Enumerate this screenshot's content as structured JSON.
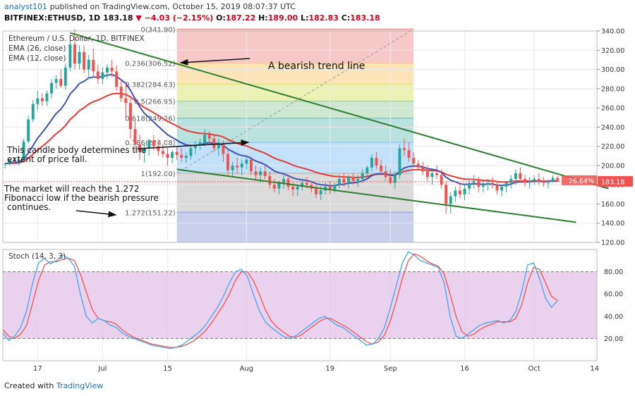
{
  "header": {
    "user": "analyst101",
    "published": "published on TradingView.com, October 15, 2019 08:07:37 UTC",
    "symbol": "BITFINEX:ETHUSD, 1D",
    "close_label": "183.18",
    "change": "▼ −4.03 (−2.15%)",
    "o_label": "O:",
    "o_val": "187.22",
    "h_label": "H:",
    "h_val": "189.00",
    "l_label": "L:",
    "l_val": "182.83",
    "c_label": "C:",
    "c_val": "183.18"
  },
  "legend": {
    "title": "Ethereum / U.S. Dollar, 1D, BITFINEX",
    "ema26": "EMA (26, close)",
    "ema12": "EMA (12, close)",
    "stoch": "Stoch (14, 3, 3)"
  },
  "annotations": {
    "bearish_trend": "A bearish trend line",
    "candle_note_1": "This candle body determines the",
    "candle_note_2": "extent of price fall.",
    "market_note_1": "The market will reach the 1.272",
    "market_note_2": "Fibonacci low if the bearish pressure",
    "market_note_3": "continues."
  },
  "footer": {
    "created_with": "Created with",
    "brand": "TradingView"
  },
  "colors": {
    "up": "#26a69a",
    "down": "#ef5350",
    "ema26": "#e53935",
    "ema12": "#3f51b5",
    "trend": "#2e7d32",
    "stoch_k": "#42a5f5",
    "stoch_d": "#ef5350",
    "stoch_bg": "#e1bee7"
  },
  "chart_data": {
    "type": "candlestick",
    "x_ticks": [
      {
        "label": "17",
        "t": 7
      },
      {
        "label": "Jul",
        "t": 21
      },
      {
        "label": "15",
        "t": 35
      },
      {
        "label": "Aug",
        "t": 52
      },
      {
        "label": "19",
        "t": 70
      },
      {
        "label": "Sep",
        "t": 83
      },
      {
        "label": "16",
        "t": 99
      },
      {
        "label": "Oct",
        "t": 114
      },
      {
        "label": "14",
        "t": 127
      }
    ],
    "price_axis": {
      "ylim": [
        120,
        340
      ],
      "ticks": [
        120,
        140,
        160,
        180,
        200,
        220,
        240,
        260,
        280,
        300,
        320,
        340
      ]
    },
    "price_labels": [
      {
        "label": "340.00",
        "v": 340
      },
      {
        "label": "320.00",
        "v": 320
      },
      {
        "label": "300.00",
        "v": 300
      },
      {
        "label": "280.00",
        "v": 280
      },
      {
        "label": "260.00",
        "v": 260
      },
      {
        "label": "240.00",
        "v": 240
      },
      {
        "label": "220.00",
        "v": 220
      },
      {
        "label": "200.00",
        "v": 200
      },
      {
        "label": "180.00",
        "v": 180
      },
      {
        "label": "160.00",
        "v": 160
      },
      {
        "label": "140.00",
        "v": 140
      },
      {
        "label": "120.00",
        "v": 120
      }
    ],
    "last_price": {
      "label": "183.18",
      "v": 183.18
    },
    "pct_label": "26.64%",
    "fibonacci": {
      "t_start": 37,
      "t_end": 88,
      "levels": [
        {
          "label": "0(341.90)",
          "v": 341.9,
          "color": "#ef9a9a"
        },
        {
          "label": "0.236(306.52)",
          "v": 306.52,
          "color": "#ffcc80"
        },
        {
          "label": "0.382(284.63)",
          "v": 284.63,
          "color": "#dce775"
        },
        {
          "label": "0.5(266.95)",
          "v": 266.95,
          "color": "#a5d6a7"
        },
        {
          "label": "0.618(249.26)",
          "v": 249.26,
          "color": "#80cbc4"
        },
        {
          "label": "0.786(224.08)",
          "v": 224.08,
          "color": "#90caf9"
        },
        {
          "label": "1(192.00)",
          "v": 192.0,
          "color": "#bdbdbd"
        },
        {
          "label": "1.272(151.22)",
          "v": 151.22,
          "color": "#9fa8da"
        }
      ],
      "extension_bottom": 120
    },
    "trend_lines": [
      {
        "t1": 14,
        "v1": 338,
        "t2": 130,
        "v2": 176
      },
      {
        "t1": 37,
        "v1": 196,
        "t2": 123,
        "v2": 141
      }
    ],
    "candles": [
      [
        202,
        203,
        197,
        202
      ],
      [
        203,
        207,
        200,
        206
      ],
      [
        206,
        209,
        203,
        204
      ],
      [
        204,
        209,
        200,
        206
      ],
      [
        206,
        228,
        205,
        225
      ],
      [
        225,
        252,
        223,
        248
      ],
      [
        248,
        268,
        245,
        264
      ],
      [
        264,
        278,
        258,
        270
      ],
      [
        270,
        275,
        262,
        267
      ],
      [
        267,
        278,
        262,
        275
      ],
      [
        275,
        290,
        270,
        286
      ],
      [
        286,
        294,
        280,
        290
      ],
      [
        290,
        300,
        281,
        283
      ],
      [
        283,
        306,
        279,
        302
      ],
      [
        302,
        330,
        298,
        326
      ],
      [
        326,
        342,
        300,
        306
      ],
      [
        306,
        325,
        300,
        318
      ],
      [
        318,
        325,
        296,
        300
      ],
      [
        300,
        315,
        290,
        310
      ],
      [
        310,
        322,
        292,
        298
      ],
      [
        298,
        305,
        285,
        290
      ],
      [
        290,
        302,
        285,
        297
      ],
      [
        297,
        305,
        290,
        302
      ],
      [
        302,
        310,
        292,
        298
      ],
      [
        298,
        304,
        278,
        282
      ],
      [
        282,
        290,
        266,
        270
      ],
      [
        270,
        285,
        250,
        265
      ],
      [
        265,
        270,
        228,
        238
      ],
      [
        238,
        248,
        214,
        222
      ],
      [
        222,
        232,
        206,
        214
      ],
      [
        214,
        224,
        203,
        218
      ],
      [
        218,
        228,
        210,
        226
      ],
      [
        226,
        232,
        216,
        220
      ],
      [
        220,
        227,
        210,
        215
      ],
      [
        215,
        222,
        208,
        212
      ],
      [
        212,
        218,
        200,
        208
      ],
      [
        208,
        216,
        202,
        214
      ],
      [
        214,
        220,
        206,
        211
      ],
      [
        211,
        218,
        204,
        208
      ],
      [
        208,
        214,
        203,
        210
      ],
      [
        210,
        222,
        206,
        218
      ],
      [
        218,
        225,
        212,
        221
      ],
      [
        221,
        228,
        216,
        224
      ],
      [
        224,
        238,
        220,
        232
      ],
      [
        232,
        236,
        222,
        228
      ],
      [
        228,
        232,
        214,
        218
      ],
      [
        218,
        228,
        210,
        222
      ],
      [
        222,
        226,
        204,
        212
      ],
      [
        212,
        216,
        190,
        195
      ],
      [
        195,
        204,
        188,
        200
      ],
      [
        200,
        208,
        192,
        198
      ],
      [
        198,
        206,
        190,
        202
      ],
      [
        202,
        210,
        196,
        206
      ],
      [
        206,
        210,
        190,
        194
      ],
      [
        194,
        200,
        185,
        190
      ],
      [
        190,
        198,
        182,
        194
      ],
      [
        194,
        200,
        186,
        189
      ],
      [
        189,
        194,
        176,
        180
      ],
      [
        180,
        186,
        172,
        176
      ],
      [
        176,
        184,
        170,
        182
      ],
      [
        182,
        190,
        176,
        186
      ],
      [
        186,
        188,
        174,
        178
      ],
      [
        178,
        182,
        168,
        175
      ],
      [
        175,
        180,
        168,
        178
      ],
      [
        178,
        186,
        174,
        182
      ],
      [
        182,
        188,
        176,
        180
      ],
      [
        180,
        184,
        172,
        176
      ],
      [
        176,
        180,
        166,
        170
      ],
      [
        170,
        178,
        164,
        174
      ],
      [
        174,
        182,
        170,
        178
      ],
      [
        178,
        184,
        170,
        175
      ],
      [
        175,
        182,
        172,
        180
      ],
      [
        180,
        190,
        176,
        186
      ],
      [
        186,
        192,
        178,
        182
      ],
      [
        182,
        190,
        176,
        188
      ],
      [
        188,
        192,
        180,
        184
      ],
      [
        184,
        190,
        178,
        186
      ],
      [
        186,
        196,
        182,
        192
      ],
      [
        192,
        200,
        186,
        198
      ],
      [
        198,
        212,
        194,
        208
      ],
      [
        208,
        214,
        196,
        200
      ],
      [
        200,
        206,
        190,
        194
      ],
      [
        194,
        200,
        184,
        188
      ],
      [
        188,
        196,
        180,
        182
      ],
      [
        182,
        194,
        176,
        190
      ],
      [
        190,
        222,
        186,
        218
      ],
      [
        218,
        228,
        210,
        216
      ],
      [
        216,
        224,
        204,
        208
      ],
      [
        208,
        214,
        198,
        202
      ],
      [
        202,
        206,
        196,
        198
      ],
      [
        198,
        204,
        190,
        194
      ],
      [
        194,
        200,
        184,
        188
      ],
      [
        188,
        196,
        180,
        192
      ],
      [
        192,
        200,
        186,
        190
      ],
      [
        190,
        196,
        176,
        180
      ],
      [
        180,
        184,
        150,
        160
      ],
      [
        160,
        172,
        150,
        168
      ],
      [
        168,
        178,
        162,
        174
      ],
      [
        174,
        182,
        166,
        170
      ],
      [
        170,
        180,
        164,
        176
      ],
      [
        176,
        186,
        170,
        182
      ],
      [
        182,
        190,
        176,
        184
      ],
      [
        184,
        188,
        172,
        178
      ],
      [
        178,
        184,
        172,
        180
      ],
      [
        180,
        186,
        174,
        182
      ],
      [
        182,
        188,
        176,
        180
      ],
      [
        180,
        184,
        170,
        174
      ],
      [
        174,
        180,
        168,
        178
      ],
      [
        178,
        184,
        172,
        182
      ],
      [
        182,
        190,
        176,
        186
      ],
      [
        186,
        196,
        180,
        192
      ],
      [
        192,
        198,
        182,
        186
      ],
      [
        186,
        190,
        178,
        182
      ],
      [
        182,
        188,
        176,
        184
      ],
      [
        184,
        190,
        180,
        186
      ],
      [
        186,
        192,
        180,
        183
      ],
      [
        183,
        188,
        178,
        182
      ],
      [
        182,
        186,
        176,
        184
      ],
      [
        184,
        190,
        182,
        187
      ],
      [
        187,
        189,
        182.8,
        183.2
      ]
    ],
    "stoch_axis": {
      "ylim": [
        0,
        100
      ],
      "ticks": [
        20,
        40,
        60,
        80
      ]
    },
    "stoch_labels": [
      {
        "label": "80.00",
        "v": 80
      },
      {
        "label": "60.00",
        "v": 60
      },
      {
        "label": "40.00",
        "v": 40
      },
      {
        "label": "20.00",
        "v": 20
      }
    ],
    "stoch_band": [
      20,
      80
    ],
    "stoch_k": [
      25,
      18,
      22,
      30,
      45,
      70,
      88,
      92,
      87,
      90,
      95,
      92,
      85,
      60,
      40,
      34,
      38,
      36,
      32,
      30,
      25,
      22,
      20,
      18,
      16,
      14,
      13,
      12,
      11,
      12,
      14,
      18,
      22,
      26,
      32,
      40,
      48,
      58,
      70,
      80,
      82,
      76,
      60,
      45,
      35,
      30,
      26,
      22,
      20,
      22,
      26,
      30,
      34,
      38,
      40,
      36,
      32,
      30,
      26,
      22,
      18,
      14,
      15,
      20,
      30,
      48,
      68,
      88,
      98,
      95,
      90,
      88,
      86,
      84,
      70,
      40,
      22,
      20,
      24,
      28,
      32,
      34,
      35,
      36,
      34,
      36,
      44,
      62,
      86,
      88,
      74,
      56,
      48,
      54
    ],
    "stoch_d": [
      28,
      22,
      20,
      24,
      32,
      52,
      72,
      86,
      89,
      89,
      91,
      92,
      90,
      78,
      62,
      46,
      38,
      36,
      35,
      33,
      28,
      24,
      21,
      19,
      17,
      15,
      14,
      13,
      12,
      12,
      13,
      15,
      18,
      22,
      27,
      34,
      42,
      50,
      60,
      72,
      80,
      80,
      72,
      60,
      46,
      36,
      30,
      26,
      22,
      21,
      23,
      27,
      31,
      35,
      38,
      38,
      35,
      32,
      29,
      25,
      21,
      17,
      15,
      17,
      23,
      36,
      54,
      74,
      90,
      96,
      94,
      90,
      87,
      85,
      78,
      60,
      40,
      26,
      22,
      24,
      28,
      31,
      33,
      35,
      35,
      35,
      38,
      50,
      70,
      84,
      82,
      70,
      58,
      54
    ]
  }
}
